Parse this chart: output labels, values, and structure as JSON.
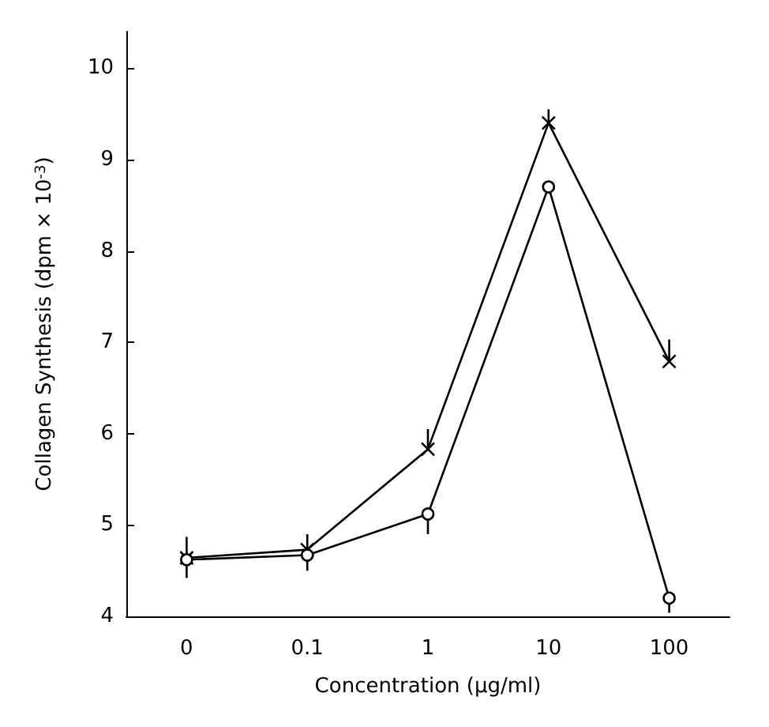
{
  "chart_data": {
    "type": "line",
    "xlabel": "Concentration (μg/ml)",
    "ylabel": "Collagen Synthesis (dpm × 10$^{-3}$)",
    "categories": [
      "0",
      "0.1",
      "1",
      "10",
      "100"
    ],
    "ylim": [
      4,
      10.4
    ],
    "yticks": [
      4,
      5,
      6,
      7,
      8,
      9,
      10
    ],
    "grid": false,
    "line_style": "solid",
    "series": [
      {
        "color": "#000000",
        "marker": "cross",
        "values": [
          4.64,
          4.73,
          5.83,
          9.4,
          6.79
        ],
        "errors": [
          [
            4.42,
            4.87
          ],
          [
            4.73,
            4.9
          ],
          [
            5.83,
            6.05
          ],
          [
            9.4,
            9.55
          ],
          [
            6.79,
            7.03
          ]
        ]
      },
      {
        "color": "#000000",
        "marker": "circle",
        "values": [
          4.62,
          4.67,
          5.12,
          8.7,
          4.2
        ],
        "errors": [
          null,
          [
            4.5,
            4.67
          ],
          [
            4.9,
            5.12
          ],
          null,
          [
            4.04,
            4.2
          ]
        ]
      }
    ]
  }
}
